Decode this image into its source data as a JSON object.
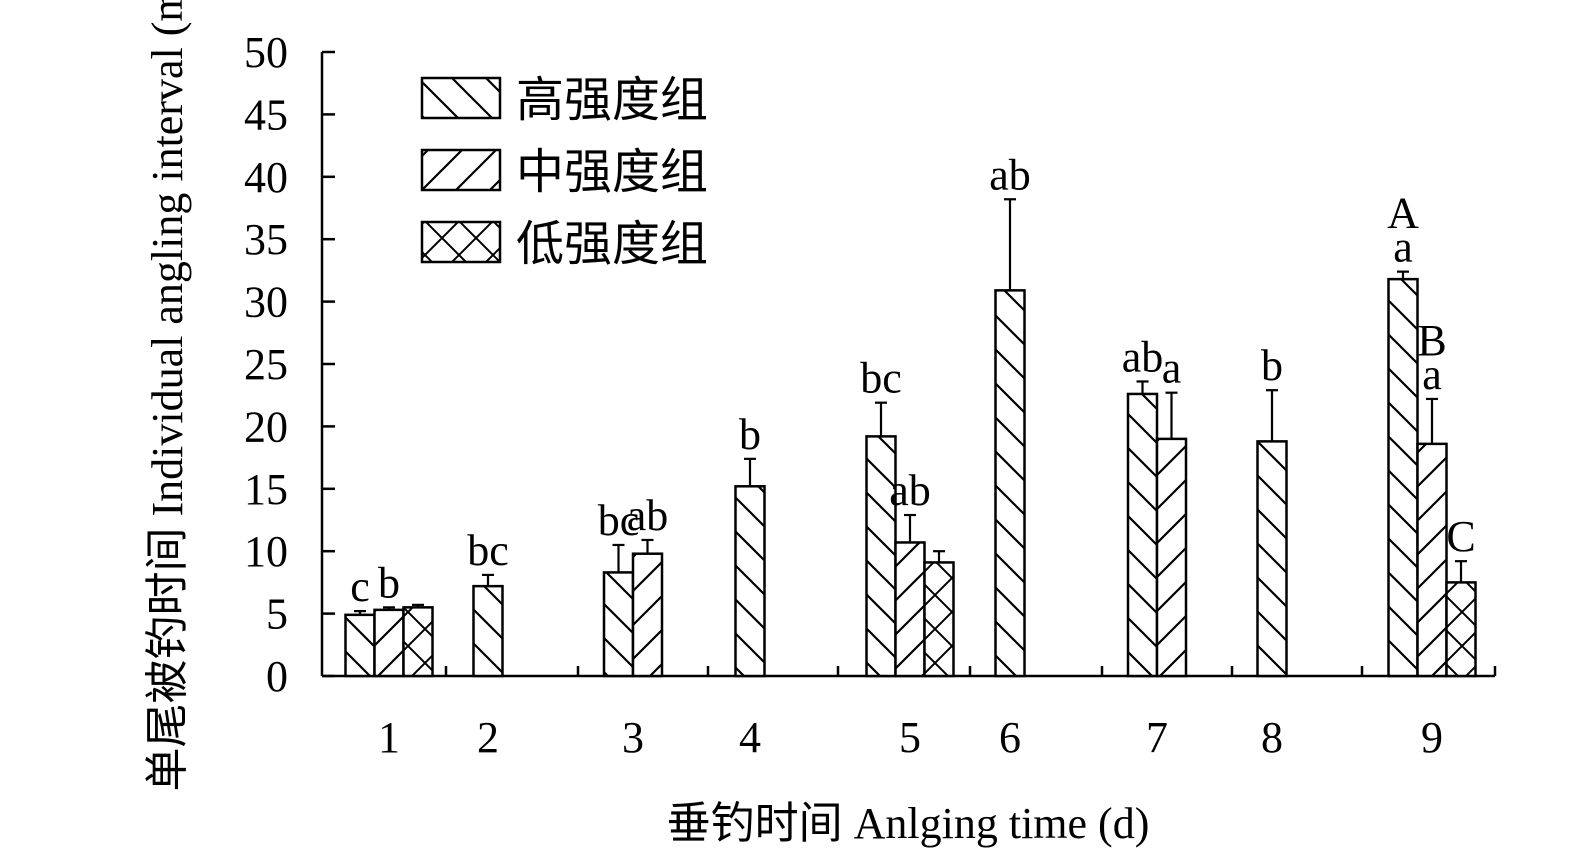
{
  "chart_data": {
    "type": "bar",
    "xlabel": "垂钓时间 Anlging time (d)",
    "ylabel": "单尾被钓时间 Individual angling interval (min)",
    "ylim": [
      0,
      50
    ],
    "yticks": [
      0,
      5,
      10,
      15,
      20,
      25,
      30,
      35,
      40,
      45,
      50
    ],
    "legend_position": "top-left",
    "series": [
      {
        "key": "high",
        "name": "高强度组",
        "pattern": "backslash"
      },
      {
        "key": "mid",
        "name": "中强度组",
        "pattern": "slash"
      },
      {
        "key": "low",
        "name": "低强度组",
        "pattern": "cross"
      }
    ],
    "groups": [
      {
        "label": "1",
        "bars": [
          {
            "series": "high",
            "value": 4.9,
            "error": 0.3,
            "sig": "c"
          },
          {
            "series": "mid",
            "value": 5.3,
            "error": 0.2,
            "sig": "b"
          },
          {
            "series": "low",
            "value": 5.5,
            "error": 0.2,
            "sig": ""
          }
        ]
      },
      {
        "label": "2",
        "bars": [
          {
            "series": "high",
            "value": 7.2,
            "error": 0.9,
            "sig": "bc"
          }
        ]
      },
      {
        "label": "3",
        "bars": [
          {
            "series": "high",
            "value": 8.3,
            "error": 2.2,
            "sig": "bc"
          },
          {
            "series": "mid",
            "value": 9.8,
            "error": 1.1,
            "sig": "ab"
          }
        ]
      },
      {
        "label": "4",
        "bars": [
          {
            "series": "high",
            "value": 15.2,
            "error": 2.2,
            "sig": "b"
          }
        ]
      },
      {
        "label": "5",
        "bars": [
          {
            "series": "high",
            "value": 19.2,
            "error": 2.7,
            "sig": "bc"
          },
          {
            "series": "mid",
            "value": 10.7,
            "error": 2.2,
            "sig": "ab"
          },
          {
            "series": "low",
            "value": 9.1,
            "error": 0.9,
            "sig": ""
          }
        ]
      },
      {
        "label": "6",
        "bars": [
          {
            "series": "high",
            "value": 30.9,
            "error": 7.3,
            "sig": "ab"
          }
        ]
      },
      {
        "label": "7",
        "bars": [
          {
            "series": "high",
            "value": 22.6,
            "error": 1.0,
            "sig": "ab"
          },
          {
            "series": "mid",
            "value": 19.0,
            "error": 3.7,
            "sig": "a"
          }
        ]
      },
      {
        "label": "8",
        "bars": [
          {
            "series": "high",
            "value": 18.8,
            "error": 4.1,
            "sig": "b"
          }
        ]
      },
      {
        "label": "9",
        "bars": [
          {
            "series": "high",
            "value": 31.8,
            "error": 0.6,
            "sig": "A\na"
          },
          {
            "series": "mid",
            "value": 18.6,
            "error": 3.6,
            "sig": "B\na"
          },
          {
            "series": "low",
            "value": 7.5,
            "error": 1.7,
            "sig": "C"
          }
        ]
      }
    ]
  }
}
